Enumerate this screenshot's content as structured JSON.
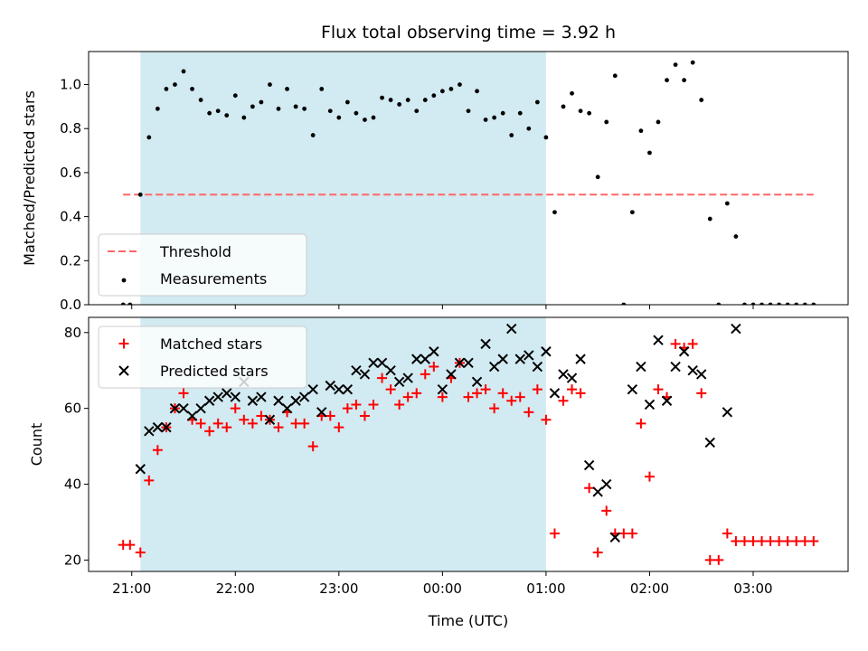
{
  "chart_data": {
    "title": "Flux total observing time = 3.92 h",
    "xlabel": "Time (UTC)",
    "x_ticks": [
      "21:00",
      "22:00",
      "23:00",
      "00:00",
      "01:00",
      "02:00",
      "03:00"
    ],
    "x_range": [
      "20:35",
      "03:55"
    ],
    "shaded_interval": {
      "start": "21:05",
      "end": "01:00",
      "color": "#add8e6"
    },
    "panels": [
      {
        "type": "scatter",
        "ylabel": "Matched/Predicted stars",
        "ylim": [
          0,
          1.15
        ],
        "y_ticks": [
          "0.0",
          "0.2",
          "0.4",
          "0.6",
          "0.8",
          "1.0"
        ],
        "legend_position": "lower-left",
        "series": [
          {
            "name": "Threshold",
            "kind": "dashed-line",
            "color": "#ff6666",
            "x_range": [
              "20:55",
              "03:35"
            ],
            "y": 0.5
          },
          {
            "name": "Measurements",
            "kind": "dots",
            "color": "#000000",
            "points": [
              [
                "20:55",
                0.0
              ],
              [
                "20:59",
                0.0
              ],
              [
                "21:05",
                0.5
              ],
              [
                "21:10",
                0.76
              ],
              [
                "21:15",
                0.89
              ],
              [
                "21:20",
                0.98
              ],
              [
                "21:25",
                1.0
              ],
              [
                "21:30",
                1.06
              ],
              [
                "21:35",
                0.98
              ],
              [
                "21:40",
                0.93
              ],
              [
                "21:45",
                0.87
              ],
              [
                "21:50",
                0.88
              ],
              [
                "21:55",
                0.86
              ],
              [
                "22:00",
                0.95
              ],
              [
                "22:05",
                0.85
              ],
              [
                "22:10",
                0.9
              ],
              [
                "22:15",
                0.92
              ],
              [
                "22:20",
                1.0
              ],
              [
                "22:25",
                0.89
              ],
              [
                "22:30",
                0.98
              ],
              [
                "22:35",
                0.9
              ],
              [
                "22:40",
                0.89
              ],
              [
                "22:45",
                0.77
              ],
              [
                "22:50",
                0.98
              ],
              [
                "22:55",
                0.88
              ],
              [
                "23:00",
                0.85
              ],
              [
                "23:05",
                0.92
              ],
              [
                "23:10",
                0.87
              ],
              [
                "23:15",
                0.84
              ],
              [
                "23:20",
                0.85
              ],
              [
                "23:25",
                0.94
              ],
              [
                "23:30",
                0.93
              ],
              [
                "23:35",
                0.91
              ],
              [
                "23:40",
                0.93
              ],
              [
                "23:45",
                0.88
              ],
              [
                "23:50",
                0.93
              ],
              [
                "23:55",
                0.95
              ],
              [
                "00:00",
                0.97
              ],
              [
                "00:05",
                0.98
              ],
              [
                "00:10",
                1.0
              ],
              [
                "00:15",
                0.88
              ],
              [
                "00:20",
                0.97
              ],
              [
                "00:25",
                0.84
              ],
              [
                "00:30",
                0.85
              ],
              [
                "00:35",
                0.87
              ],
              [
                "00:40",
                0.77
              ],
              [
                "00:45",
                0.87
              ],
              [
                "00:50",
                0.8
              ],
              [
                "00:55",
                0.92
              ],
              [
                "01:00",
                0.76
              ],
              [
                "01:05",
                0.42
              ],
              [
                "01:10",
                0.9
              ],
              [
                "01:15",
                0.96
              ],
              [
                "01:20",
                0.88
              ],
              [
                "01:25",
                0.87
              ],
              [
                "01:30",
                0.58
              ],
              [
                "01:35",
                0.83
              ],
              [
                "01:40",
                1.04
              ],
              [
                "01:45",
                0.0
              ],
              [
                "01:50",
                0.42
              ],
              [
                "01:55",
                0.79
              ],
              [
                "02:00",
                0.69
              ],
              [
                "02:05",
                0.83
              ],
              [
                "02:10",
                1.02
              ],
              [
                "02:15",
                1.09
              ],
              [
                "02:20",
                1.02
              ],
              [
                "02:25",
                1.1
              ],
              [
                "02:30",
                0.93
              ],
              [
                "02:35",
                0.39
              ],
              [
                "02:40",
                0.0
              ],
              [
                "02:45",
                0.46
              ],
              [
                "02:50",
                0.31
              ],
              [
                "02:55",
                0.0
              ],
              [
                "03:00",
                0.0
              ],
              [
                "03:05",
                0.0
              ],
              [
                "03:10",
                0.0
              ],
              [
                "03:15",
                0.0
              ],
              [
                "03:20",
                0.0
              ],
              [
                "03:25",
                0.0
              ],
              [
                "03:30",
                0.0
              ],
              [
                "03:35",
                0.0
              ]
            ]
          }
        ]
      },
      {
        "type": "scatter",
        "ylabel": "Count",
        "ylim": [
          17,
          84
        ],
        "y_ticks": [
          "20",
          "40",
          "60",
          "80"
        ],
        "legend_position": "upper-left",
        "series": [
          {
            "name": "Matched stars",
            "kind": "plus",
            "color": "#ff0000",
            "points": [
              [
                "20:55",
                24
              ],
              [
                "20:59",
                24
              ],
              [
                "21:05",
                22
              ],
              [
                "21:10",
                41
              ],
              [
                "21:15",
                49
              ],
              [
                "21:20",
                55
              ],
              [
                "21:25",
                60
              ],
              [
                "21:30",
                64
              ],
              [
                "21:35",
                57
              ],
              [
                "21:40",
                56
              ],
              [
                "21:45",
                54
              ],
              [
                "21:50",
                56
              ],
              [
                "21:55",
                55
              ],
              [
                "22:00",
                60
              ],
              [
                "22:05",
                57
              ],
              [
                "22:10",
                56
              ],
              [
                "22:15",
                58
              ],
              [
                "22:20",
                57
              ],
              [
                "22:25",
                55
              ],
              [
                "22:30",
                59
              ],
              [
                "22:35",
                56
              ],
              [
                "22:40",
                56
              ],
              [
                "22:45",
                50
              ],
              [
                "22:50",
                58
              ],
              [
                "22:55",
                58
              ],
              [
                "23:00",
                55
              ],
              [
                "23:05",
                60
              ],
              [
                "23:10",
                61
              ],
              [
                "23:15",
                58
              ],
              [
                "23:20",
                61
              ],
              [
                "23:25",
                68
              ],
              [
                "23:30",
                65
              ],
              [
                "23:35",
                61
              ],
              [
                "23:40",
                63
              ],
              [
                "23:45",
                64
              ],
              [
                "23:50",
                69
              ],
              [
                "23:55",
                71
              ],
              [
                "00:00",
                63
              ],
              [
                "00:05",
                68
              ],
              [
                "00:10",
                72
              ],
              [
                "00:15",
                63
              ],
              [
                "00:20",
                64
              ],
              [
                "00:25",
                65
              ],
              [
                "00:30",
                60
              ],
              [
                "00:35",
                64
              ],
              [
                "00:40",
                62
              ],
              [
                "00:45",
                63
              ],
              [
                "00:50",
                59
              ],
              [
                "00:55",
                65
              ],
              [
                "01:00",
                57
              ],
              [
                "01:05",
                27
              ],
              [
                "01:10",
                62
              ],
              [
                "01:15",
                65
              ],
              [
                "01:20",
                64
              ],
              [
                "01:25",
                39
              ],
              [
                "01:30",
                22
              ],
              [
                "01:35",
                33
              ],
              [
                "01:40",
                27
              ],
              [
                "01:45",
                27
              ],
              [
                "01:50",
                27
              ],
              [
                "01:55",
                56
              ],
              [
                "02:00",
                42
              ],
              [
                "02:05",
                65
              ],
              [
                "02:10",
                63
              ],
              [
                "02:15",
                77
              ],
              [
                "02:20",
                76
              ],
              [
                "02:25",
                77
              ],
              [
                "02:30",
                64
              ],
              [
                "02:35",
                20
              ],
              [
                "02:40",
                20
              ],
              [
                "02:45",
                27
              ],
              [
                "02:50",
                25
              ],
              [
                "02:55",
                25
              ],
              [
                "03:00",
                25
              ],
              [
                "03:05",
                25
              ],
              [
                "03:10",
                25
              ],
              [
                "03:15",
                25
              ],
              [
                "03:20",
                25
              ],
              [
                "03:25",
                25
              ],
              [
                "03:30",
                25
              ],
              [
                "03:35",
                25
              ]
            ]
          },
          {
            "name": "Predicted stars",
            "kind": "cross",
            "color": "#000000",
            "points": [
              [
                "21:05",
                44
              ],
              [
                "21:10",
                54
              ],
              [
                "21:15",
                55
              ],
              [
                "21:20",
                55
              ],
              [
                "21:25",
                60
              ],
              [
                "21:30",
                60
              ],
              [
                "21:35",
                58
              ],
              [
                "21:40",
                60
              ],
              [
                "21:45",
                62
              ],
              [
                "21:50",
                63
              ],
              [
                "21:55",
                64
              ],
              [
                "22:00",
                63
              ],
              [
                "22:05",
                67
              ],
              [
                "22:10",
                62
              ],
              [
                "22:15",
                63
              ],
              [
                "22:20",
                57
              ],
              [
                "22:25",
                62
              ],
              [
                "22:30",
                60
              ],
              [
                "22:35",
                62
              ],
              [
                "22:40",
                63
              ],
              [
                "22:45",
                65
              ],
              [
                "22:50",
                59
              ],
              [
                "22:55",
                66
              ],
              [
                "23:00",
                65
              ],
              [
                "23:05",
                65
              ],
              [
                "23:10",
                70
              ],
              [
                "23:15",
                69
              ],
              [
                "23:20",
                72
              ],
              [
                "23:25",
                72
              ],
              [
                "23:30",
                70
              ],
              [
                "23:35",
                67
              ],
              [
                "23:40",
                68
              ],
              [
                "23:45",
                73
              ],
              [
                "23:50",
                73
              ],
              [
                "23:55",
                75
              ],
              [
                "00:00",
                65
              ],
              [
                "00:05",
                69
              ],
              [
                "00:10",
                72
              ],
              [
                "00:15",
                72
              ],
              [
                "00:20",
                67
              ],
              [
                "00:25",
                77
              ],
              [
                "00:30",
                71
              ],
              [
                "00:35",
                73
              ],
              [
                "00:40",
                81
              ],
              [
                "00:45",
                73
              ],
              [
                "00:50",
                74
              ],
              [
                "00:55",
                71
              ],
              [
                "01:00",
                75
              ],
              [
                "01:05",
                64
              ],
              [
                "01:10",
                69
              ],
              [
                "01:15",
                68
              ],
              [
                "01:20",
                73
              ],
              [
                "01:25",
                45
              ],
              [
                "01:30",
                38
              ],
              [
                "01:35",
                40
              ],
              [
                "01:40",
                26
              ],
              [
                "01:50",
                65
              ],
              [
                "01:55",
                71
              ],
              [
                "02:00",
                61
              ],
              [
                "02:05",
                78
              ],
              [
                "02:10",
                62
              ],
              [
                "02:15",
                71
              ],
              [
                "02:20",
                75
              ],
              [
                "02:25",
                70
              ],
              [
                "02:30",
                69
              ],
              [
                "02:35",
                51
              ],
              [
                "02:45",
                59
              ],
              [
                "02:50",
                81
              ]
            ]
          }
        ]
      }
    ]
  }
}
